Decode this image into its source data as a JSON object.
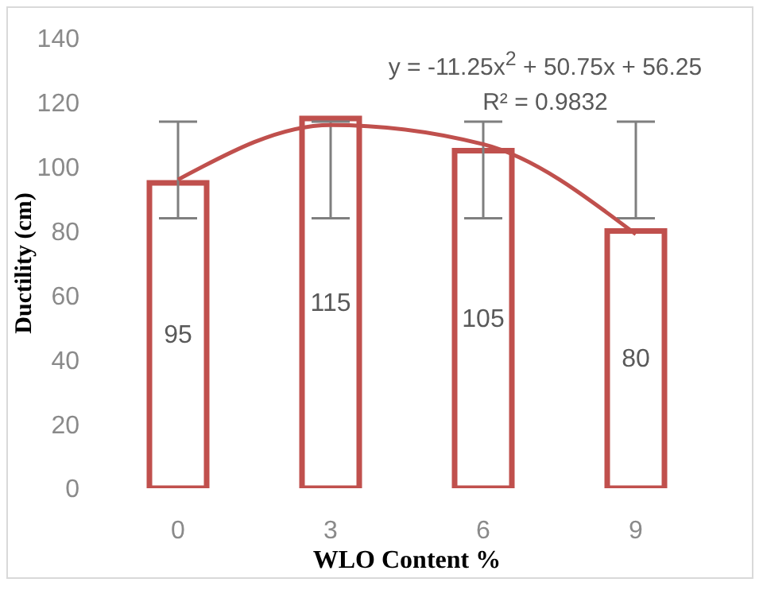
{
  "chart_data": {
    "type": "bar",
    "xlabel": "WLO Content %",
    "ylabel": "Ductility (cm)",
    "categories": [
      "0",
      "3",
      "6",
      "9"
    ],
    "series": [
      {
        "color": "#c0504d",
        "values": [
          95,
          115,
          105,
          80
        ],
        "value_labels": [
          "95",
          "115",
          "105",
          "80"
        ],
        "errors": [
          [
            84,
            114
          ],
          [
            84,
            114
          ],
          [
            84,
            114
          ],
          [
            84,
            114
          ]
        ]
      },
      {
        "type": "line",
        "color": "#c0504d",
        "x": [
          "0",
          "3",
          "6",
          "9"
        ],
        "values": [
          96,
          113,
          107,
          79
        ]
      }
    ],
    "ylim": [
      0,
      140
    ],
    "yticks": [
      0,
      20,
      40,
      60,
      80,
      100,
      120,
      140
    ],
    "grid": false,
    "legend": false,
    "annotations": [
      "y = -11.25x$^{2}$ + 50.75x + 56.25",
      "R² = 0.9832"
    ]
  }
}
